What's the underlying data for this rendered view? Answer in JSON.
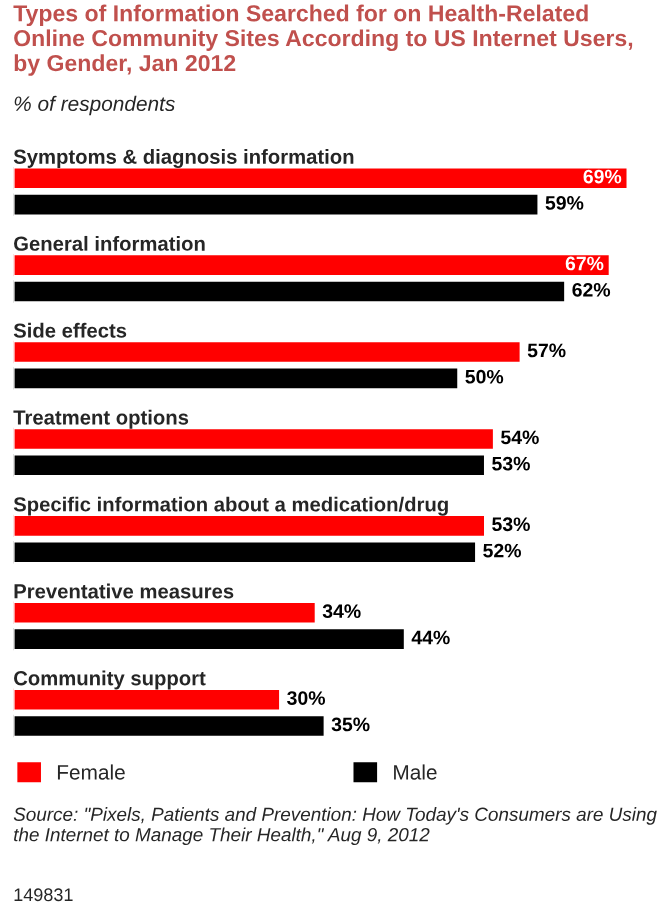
{
  "chart_data": {
    "type": "bar",
    "orientation": "horizontal",
    "title": "Types of Information Searched for on Health-Related Online Community Sites According to US Internet Users, by Gender, Jan 2012",
    "subtitle": "% of respondents",
    "categories": [
      "Symptoms & diagnosis information",
      "General information",
      "Side effects",
      "Treatment options",
      "Specific information about a medication/drug",
      "Preventative measures",
      "Community support"
    ],
    "series": [
      {
        "name": "Female",
        "color": "#ff0000",
        "values": [
          69,
          67,
          57,
          54,
          53,
          34,
          30
        ],
        "value_labels": [
          "69%",
          "67%",
          "57%",
          "54%",
          "53%",
          "34%",
          "30%"
        ]
      },
      {
        "name": "Male",
        "color": "#000000",
        "values": [
          59,
          62,
          50,
          53,
          52,
          44,
          35
        ],
        "value_labels": [
          "59%",
          "62%",
          "50%",
          "53%",
          "52%",
          "44%",
          "35%"
        ]
      }
    ],
    "legend": "bottom",
    "annotations": [
      "Source: \"Pixels, Patients and Prevention: How Today's Consumers are Using the Internet to Manage Their Health,\" Aug 9, 2012",
      "149831"
    ]
  }
}
